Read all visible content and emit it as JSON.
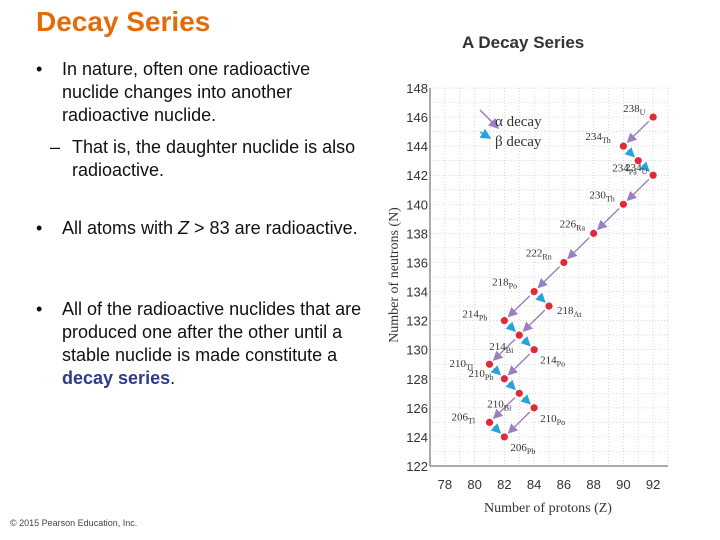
{
  "slide": {
    "title": "Decay Series",
    "bullets": [
      {
        "text": "In nature, often one radioactive nuclide changes into another radioactive nuclide."
      },
      {
        "sub": "That is, the daughter nuclide is also radioactive."
      },
      {
        "pre": "All atoms with ",
        "var": "Z",
        "post": " > 83 are radioactive."
      },
      {
        "pre": "All of the radioactive nuclides that are produced one after the other until a stable nuclide is made constitute a ",
        "highlight": "decay series",
        "post": "."
      }
    ],
    "copyright": "© 2015 Pearson Education, Inc."
  },
  "chart_data": {
    "type": "scatter",
    "title": "A Decay Series",
    "xlabel": "Number of protons (Z)",
    "ylabel": "Number of neutrons (N)",
    "xlim": [
      77,
      93
    ],
    "ylim": [
      122,
      148
    ],
    "xticks": [
      78,
      80,
      82,
      84,
      86,
      88,
      90,
      92
    ],
    "yticks": [
      122,
      124,
      126,
      128,
      130,
      132,
      134,
      136,
      138,
      140,
      142,
      144,
      146,
      148
    ],
    "grid": true,
    "legend": {
      "placement": "top-left",
      "alpha": "α decay",
      "beta": "β decay"
    },
    "colors": {
      "point": "#e02a3a",
      "alpha": "#9a7fc2",
      "beta": "#26a3dd",
      "grid": "#cccccc",
      "axis": "#555555"
    },
    "nuclides": [
      {
        "id": "U238",
        "mass": "238",
        "sym": "U",
        "z": 92,
        "n": 146
      },
      {
        "id": "Th234",
        "mass": "234",
        "sym": "Th",
        "z": 90,
        "n": 144
      },
      {
        "id": "Pa234",
        "mass": "234",
        "sym": "Pa",
        "z": 91,
        "n": 143
      },
      {
        "id": "U234",
        "mass": "234",
        "sym": "U",
        "z": 92,
        "n": 142
      },
      {
        "id": "Th230",
        "mass": "230",
        "sym": "Th",
        "z": 90,
        "n": 140
      },
      {
        "id": "Ra226",
        "mass": "226",
        "sym": "Ra",
        "z": 88,
        "n": 138
      },
      {
        "id": "Rn222",
        "mass": "222",
        "sym": "Rn",
        "z": 86,
        "n": 136
      },
      {
        "id": "Po218",
        "mass": "218",
        "sym": "Po",
        "z": 84,
        "n": 134
      },
      {
        "id": "At218",
        "mass": "218",
        "sym": "At",
        "z": 85,
        "n": 133
      },
      {
        "id": "Pb214",
        "mass": "214",
        "sym": "Pb",
        "z": 82,
        "n": 132
      },
      {
        "id": "Bi214",
        "mass": "214",
        "sym": "Bi",
        "z": 83,
        "n": 131
      },
      {
        "id": "Po214",
        "mass": "214",
        "sym": "Po",
        "z": 84,
        "n": 130
      },
      {
        "id": "Tl210",
        "mass": "210",
        "sym": "Tl",
        "z": 81,
        "n": 129
      },
      {
        "id": "Pb210",
        "mass": "210",
        "sym": "Pb",
        "z": 82,
        "n": 128
      },
      {
        "id": "Bi210",
        "mass": "210",
        "sym": "Bi",
        "z": 83,
        "n": 127
      },
      {
        "id": "Po210",
        "mass": "210",
        "sym": "Po",
        "z": 84,
        "n": 126
      },
      {
        "id": "Tl206",
        "mass": "206",
        "sym": "Tl",
        "z": 81,
        "n": 125
      },
      {
        "id": "Pb206",
        "mass": "206",
        "sym": "Pb",
        "z": 82,
        "n": 124
      }
    ],
    "decays": [
      {
        "from": "U238",
        "to": "Th234",
        "type": "alpha"
      },
      {
        "from": "Th234",
        "to": "Pa234",
        "type": "beta"
      },
      {
        "from": "Pa234",
        "to": "U234",
        "type": "beta"
      },
      {
        "from": "U234",
        "to": "Th230",
        "type": "alpha"
      },
      {
        "from": "Th230",
        "to": "Ra226",
        "type": "alpha"
      },
      {
        "from": "Ra226",
        "to": "Rn222",
        "type": "alpha"
      },
      {
        "from": "Rn222",
        "to": "Po218",
        "type": "alpha"
      },
      {
        "from": "Po218",
        "to": "Pb214",
        "type": "alpha"
      },
      {
        "from": "Po218",
        "to": "At218",
        "type": "beta"
      },
      {
        "from": "At218",
        "to": "Bi214",
        "type": "alpha"
      },
      {
        "from": "Pb214",
        "to": "Bi214",
        "type": "beta"
      },
      {
        "from": "Bi214",
        "to": "Po214",
        "type": "beta"
      },
      {
        "from": "Bi214",
        "to": "Tl210",
        "type": "alpha"
      },
      {
        "from": "Po214",
        "to": "Pb210",
        "type": "alpha"
      },
      {
        "from": "Tl210",
        "to": "Pb210",
        "type": "beta"
      },
      {
        "from": "Pb210",
        "to": "Bi210",
        "type": "beta"
      },
      {
        "from": "Bi210",
        "to": "Po210",
        "type": "beta"
      },
      {
        "from": "Bi210",
        "to": "Tl206",
        "type": "alpha"
      },
      {
        "from": "Po210",
        "to": "Pb206",
        "type": "alpha"
      },
      {
        "from": "Tl206",
        "to": "Pb206",
        "type": "beta"
      }
    ]
  }
}
